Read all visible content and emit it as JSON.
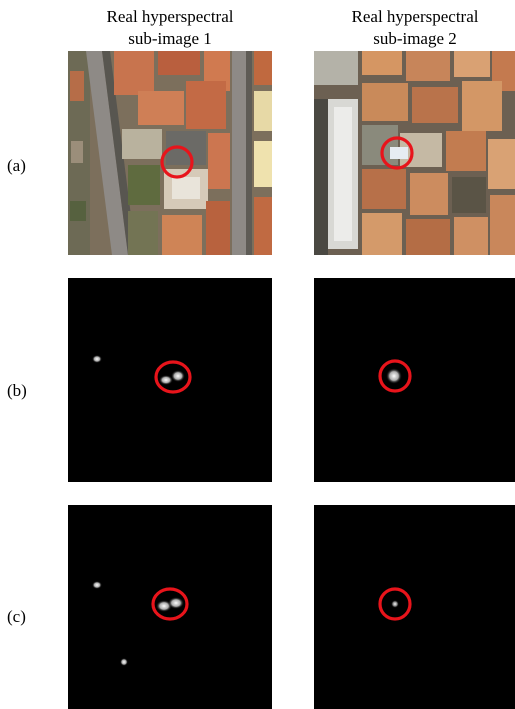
{
  "figure": {
    "columns": [
      {
        "title_line1": "Real hyperspectral",
        "title_line2": "sub-image 1"
      },
      {
        "title_line1": "Real hyperspectral",
        "title_line2": "sub-image 2"
      }
    ],
    "rows": [
      {
        "label": "(a)",
        "kind": "aerial rgb image"
      },
      {
        "label": "(b)",
        "kind": "detection map"
      },
      {
        "label": "(c)",
        "kind": "detection map"
      }
    ],
    "colors": {
      "marker": "#e8141b",
      "map_background": "#000000",
      "roof": "#c8744e",
      "road": "#8e8a86"
    }
  }
}
